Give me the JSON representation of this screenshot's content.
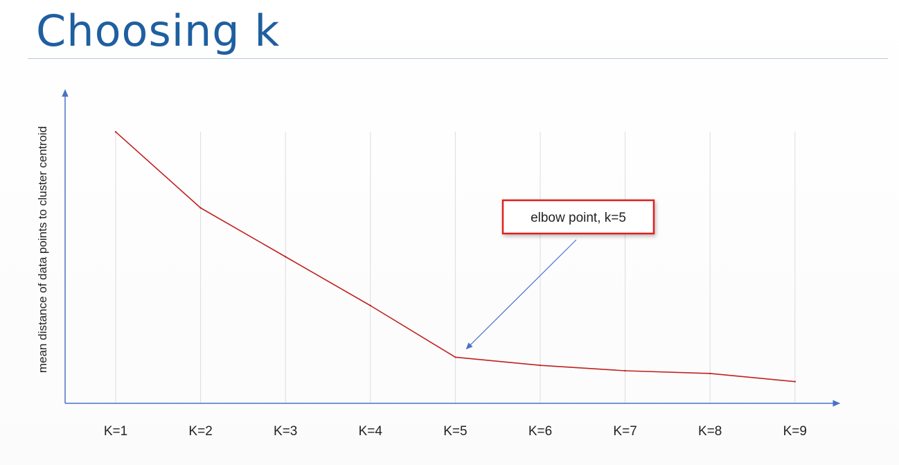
{
  "slide": {
    "title": "Choosing k"
  },
  "chart_data": {
    "type": "line",
    "title": "",
    "xlabel": "",
    "ylabel": "mean distance of data points to cluster centroid",
    "categories": [
      "K=1",
      "K=2",
      "K=3",
      "K=4",
      "K=5",
      "K=6",
      "K=7",
      "K=8",
      "K=9"
    ],
    "values": [
      100,
      72,
      54,
      36,
      17,
      14,
      12,
      11,
      8
    ],
    "ylim": [
      0,
      120
    ],
    "vertical_grid": true,
    "horizontal_grid": false,
    "line_color": "#c0201f",
    "grid_color": "#d8dce4",
    "axis_color": "#4a72c4",
    "annotation": {
      "text": "elbow point, k=5",
      "target_category": "K=5",
      "box_border_color": "#e41f1f",
      "arrow_color": "#4a72c4"
    }
  }
}
